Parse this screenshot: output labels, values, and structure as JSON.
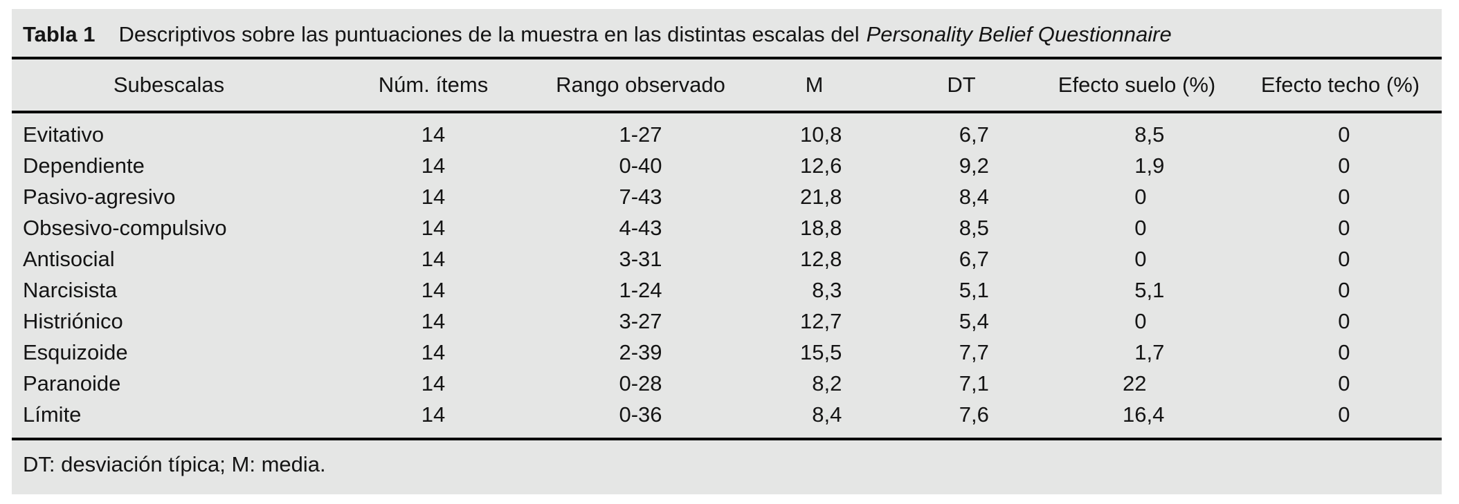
{
  "colors": {
    "table_background": "#e5e6e5",
    "rule": "#000000",
    "text": "#141414",
    "page_background": "#ffffff"
  },
  "table": {
    "title": {
      "label": "Tabla 1",
      "text": "Descriptivos sobre las puntuaciones de la muestra en las distintas escalas del",
      "italic": "Personality Belief Questionnaire"
    },
    "columns": [
      {
        "key": "subescalas",
        "label": "Subescalas",
        "numeric": false
      },
      {
        "key": "num-items",
        "label": "Núm. ítems",
        "numeric": false
      },
      {
        "key": "rango",
        "label": "Rango observado",
        "numeric": false
      },
      {
        "key": "m",
        "label": "M",
        "numeric": true
      },
      {
        "key": "dt",
        "label": "DT",
        "numeric": true
      },
      {
        "key": "efecto-suelo",
        "label": "Efecto suelo (%)",
        "numeric": true
      },
      {
        "key": "efecto-techo",
        "label": "Efecto techo (%)",
        "numeric": true
      }
    ],
    "rows": [
      [
        "Evitativo",
        "14",
        "1-27",
        "10,8",
        "6,7",
        "8,5",
        "0"
      ],
      [
        "Dependiente",
        "14",
        "0-40",
        "12,6",
        "9,2",
        "1,9",
        "0"
      ],
      [
        "Pasivo-agresivo",
        "14",
        "7-43",
        "21,8",
        "8,4",
        "0",
        "0"
      ],
      [
        "Obsesivo-compulsivo",
        "14",
        "4-43",
        "18,8",
        "8,5",
        "0",
        "0"
      ],
      [
        "Antisocial",
        "14",
        "3-31",
        "12,8",
        "6,7",
        "0",
        "0"
      ],
      [
        "Narcisista",
        "14",
        "1-24",
        "8,3",
        "5,1",
        "5,1",
        "0"
      ],
      [
        "Histriónico",
        "14",
        "3-27",
        "12,7",
        "5,4",
        "0",
        "0"
      ],
      [
        "Esquizoide",
        "14",
        "2-39",
        "15,5",
        "7,7",
        "1,7",
        "0"
      ],
      [
        "Paranoide",
        "14",
        "0-28",
        "8,2",
        "7,1",
        "22",
        "0"
      ],
      [
        "Límite",
        "14",
        "0-36",
        "8,4",
        "7,6",
        "16,4",
        "0"
      ]
    ],
    "footnote": "DT: desviación típica; M: media."
  }
}
